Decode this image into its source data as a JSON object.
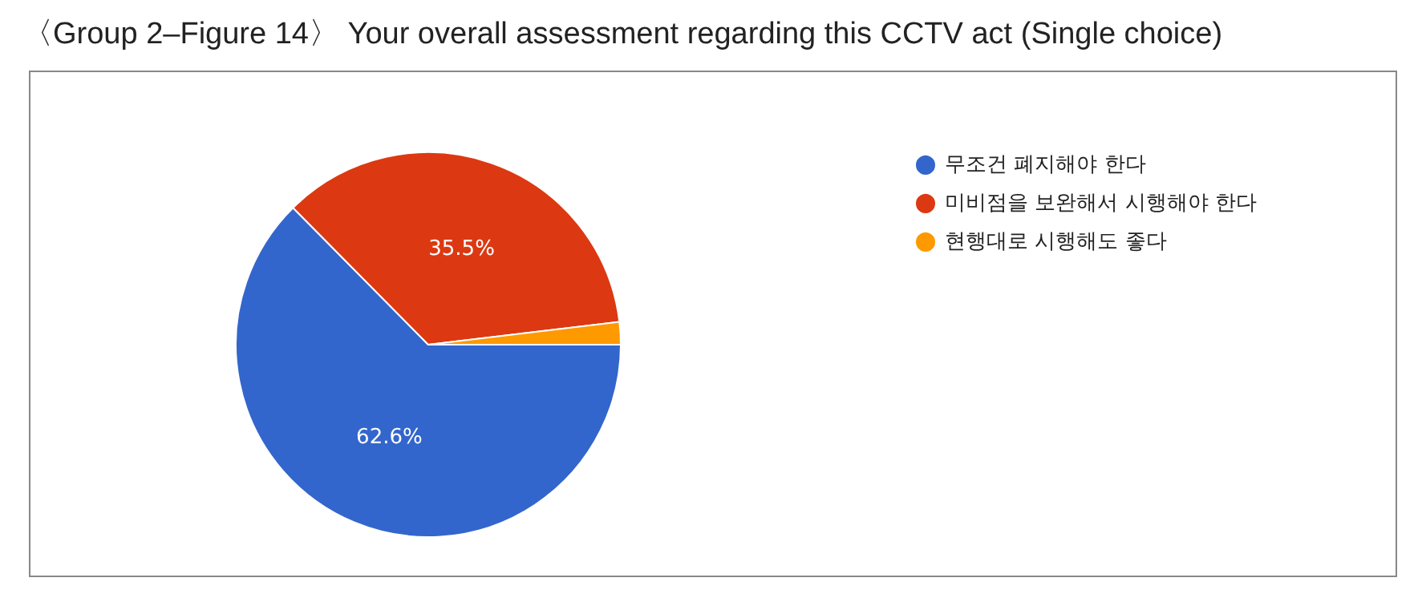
{
  "chart_data": {
    "type": "pie",
    "title": "〈Group 2–Figure 14〉 Your overall assessment regarding this CCTV act (Single choice)",
    "categories": [
      "무조건 폐지해야 한다",
      "미비점을 보완해서 시행해야 한다",
      "현행대로 시행해도 좋다"
    ],
    "values": [
      62.6,
      35.5,
      1.9
    ],
    "colors": [
      "#3366cc",
      "#dc3912",
      "#ff9900"
    ],
    "value_labels": [
      "62.6%",
      "35.5%",
      null
    ],
    "legend": "right"
  }
}
